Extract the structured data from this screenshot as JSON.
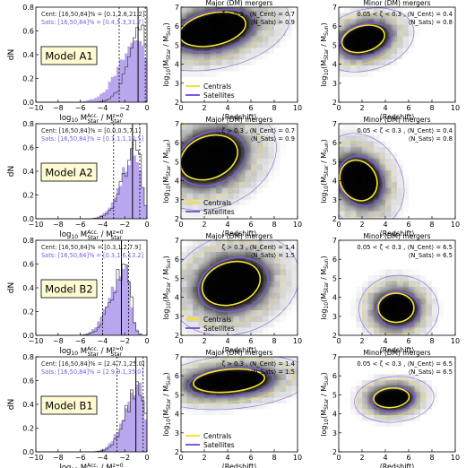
{
  "figure": {
    "rows": [
      {
        "model_label": "Model A1",
        "hist": {
          "cent_text": "Cent: [16,50,84]% = [0.1,2.8,21.2]",
          "sats_text": "Sats: [16,50,84]% = [0.4,5.3,31.7]",
          "sats_fill_peak": -0.5
        },
        "major": {
          "title": "Major (DM) mergers",
          "zeta_text": "ζ > 0.3 , ⟨N_Cent⟩ = 0.7",
          "nsat_text": "⟨N_Sats⟩ = 0.9",
          "blob": {
            "cx": 2.8,
            "cy": 5.8,
            "rx": 3.4,
            "ry": 1.0,
            "tilt": -12
          },
          "legend": true
        },
        "minor": {
          "title": "Minor (DM) mergers",
          "zeta_text": "0.05 < ζ < 0.3 , ⟨N_Cent⟩ = 0.4",
          "nsat_text": "⟨N_Sats⟩ = 0.8",
          "blob": {
            "cx": 2.2,
            "cy": 5.3,
            "rx": 2.2,
            "ry": 0.8,
            "tilt": -15
          }
        }
      },
      {
        "model_label": "Model A2",
        "hist": {
          "cent_text": "Cent: [16,50,84]% = [0.0,0.5,7.1]",
          "sats_text": "Sats: [16,50,84]% = [0.1,1.1,12.5]",
          "sats_fill_peak": -1.0
        },
        "major": {
          "title": "Major (DM) mergers",
          "zeta_text": "ζ > 0.3 , ⟨N_Cent⟩ = 0.7",
          "nsat_text": "⟨N_Sats⟩ = 0.9",
          "blob": {
            "cx": 2.5,
            "cy": 5.2,
            "rx": 3.0,
            "ry": 1.3,
            "tilt": -22
          },
          "legend": true
        },
        "minor": {
          "title": "Minor (DM) mergers",
          "zeta_text": "0.05 < ζ < 0.3 , ⟨N_Cent⟩ = 0.4",
          "nsat_text": "⟨N_Sats⟩ = 0.8",
          "blob": {
            "cx": 1.8,
            "cy": 4.0,
            "rx": 1.8,
            "ry": 1.3,
            "tilt": -30
          }
        }
      },
      {
        "model_label": "Model B2",
        "hist": {
          "cent_text": "Cent: [16,50,84]% = [0.3,1.2,7.9]",
          "sats_text": "Sats: [16,50,84]% = [0.3,1.6,13.2]",
          "sats_fill_peak": -2.0
        },
        "major": {
          "title": "Major (DM) mergers",
          "zeta_text": "ζ > 0.3 , ⟨N_Cent⟩ = 1.4",
          "nsat_text": "⟨N_Sats⟩ = 1.5",
          "blob": {
            "cx": 4.4,
            "cy": 4.7,
            "rx": 3.0,
            "ry": 1.3,
            "tilt": -18
          },
          "legend": true
        },
        "minor": {
          "title": "Minor (DM) mergers",
          "zeta_text": "0.05 < ζ < 0.3 , ⟨N_Cent⟩ = 6.5",
          "nsat_text": "⟨N_Sats⟩ = 6.5",
          "blob": {
            "cx": 5.0,
            "cy": 3.4,
            "rx": 1.8,
            "ry": 0.9,
            "tilt": 0
          }
        }
      },
      {
        "model_label": "Model B1",
        "hist": {
          "cent_text": "Cent: [16,50,84]% = [2.4,7.1,25.0]",
          "sats_text": "Sats: [16,50,84]% = [2.9,9.1,35.0]",
          "sats_fill_peak": -0.7
        },
        "major": {
          "title": "Major (DM) mergers",
          "zeta_text": "ζ > 0.3 , ⟨N_Cent⟩ = 1.4",
          "nsat_text": "⟨N_Sats⟩ = 1.5",
          "blob": {
            "cx": 4.2,
            "cy": 5.7,
            "rx": 3.6,
            "ry": 0.7,
            "tilt": -5
          },
          "legend": true
        },
        "minor": {
          "title": "Minor (DM) mergers",
          "zeta_text": "0.05 < ζ < 0.3 , ⟨N_Cent⟩ = 6.5",
          "nsat_text": "⟨N_Sats⟩ = 6.5",
          "blob": {
            "cx": 4.6,
            "cy": 4.8,
            "rx": 1.8,
            "ry": 0.6,
            "tilt": -5
          }
        }
      }
    ],
    "legend": {
      "centrals": "Centrals",
      "satellites": "Satellites"
    },
    "colors": {
      "centrals": "#f5e234",
      "satellites": "#7b5cd9",
      "sats_fill": "#b9a6ef",
      "cent_text": "#222222",
      "sats_text": "#7b5cd9"
    }
  },
  "chart_data": [
    {
      "type": "bar",
      "panel": "histogram",
      "xlabel": "log10 M_Star^Acc. / M_Star^z=0",
      "ylabel": "dN",
      "xlim": [
        -10,
        0
      ],
      "ylim": [
        0,
        0.8
      ],
      "xticks": [
        -10,
        -8,
        -6,
        -4,
        -2,
        0
      ],
      "yticks": [
        0.0,
        0.2,
        0.4,
        0.6,
        0.8
      ]
    },
    {
      "type": "heatmap",
      "panel": "major-mergers",
      "xlabel": "⟨Redshift⟩",
      "ylabel": "log10(M_Star / M_Sun)",
      "xlim": [
        0,
        10
      ],
      "ylim": [
        2,
        7
      ],
      "xticks": [
        0,
        2,
        4,
        6,
        8,
        10
      ],
      "yticks": [
        2,
        3,
        4,
        5,
        6,
        7
      ]
    },
    {
      "type": "heatmap",
      "panel": "minor-mergers",
      "xlabel": "⟨Redshift⟩",
      "ylabel": "log10(M_Star / M_Sun)",
      "xlim": [
        0,
        10
      ],
      "ylim": [
        2,
        7
      ],
      "xticks": [
        0,
        2,
        4,
        6,
        8,
        10
      ],
      "yticks": [
        2,
        3,
        4,
        5,
        6,
        7
      ]
    }
  ]
}
